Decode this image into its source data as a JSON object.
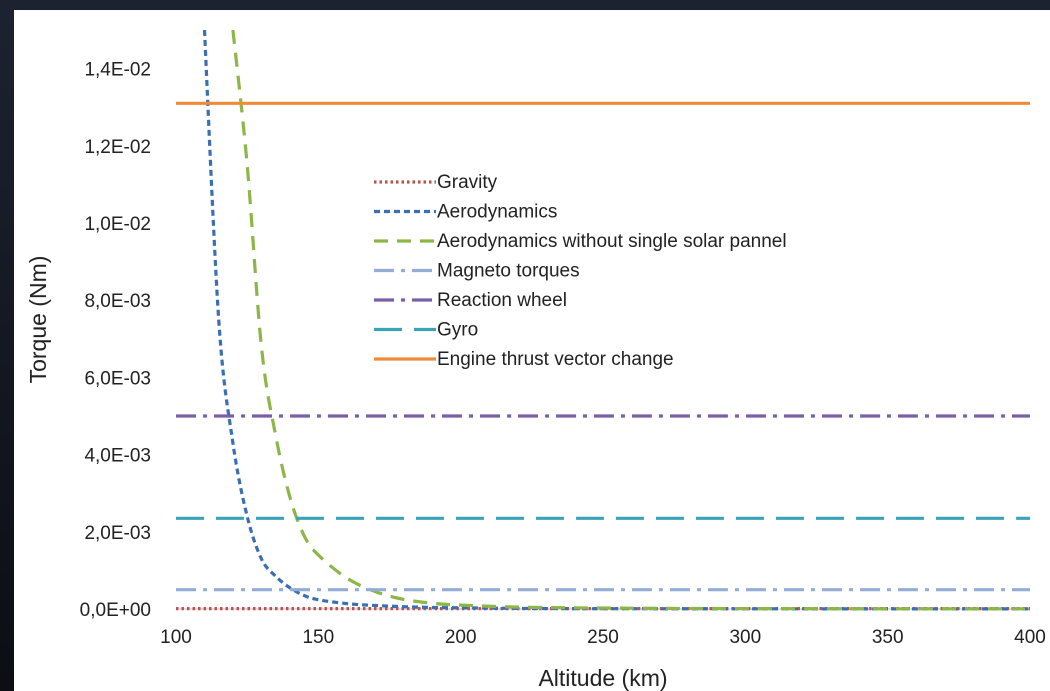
{
  "chart_data": {
    "type": "line",
    "title": "",
    "xlabel": "Altitude  (km)",
    "ylabel": "Torque (Nm)",
    "xlim": [
      100,
      400
    ],
    "ylim": [
      0,
      0.015
    ],
    "xticks": [
      100,
      150,
      200,
      250,
      300,
      350,
      400
    ],
    "xtick_labels": [
      "100",
      "150",
      "200",
      "250",
      "300",
      "350",
      "400"
    ],
    "yticks": [
      0,
      0.002,
      0.004,
      0.006,
      0.008,
      0.01,
      0.012,
      0.014
    ],
    "ytick_labels": [
      "0,0E+00",
      "2,0E-03",
      "4,0E-03",
      "6,0E-03",
      "8,0E-03",
      "1,0E-02",
      "1,2E-02",
      "1,4E-02"
    ],
    "grid": false,
    "legend_position": "center",
    "x": [
      100,
      110,
      115,
      120,
      125,
      130,
      135,
      140,
      145,
      150,
      160,
      170,
      180,
      190,
      200,
      220,
      240,
      260,
      300,
      350,
      400
    ],
    "series": [
      {
        "name": "Gravity",
        "color": "#c0504d",
        "dash": "dotted",
        "values": [
          1e-05,
          1e-05,
          1e-05,
          1e-05,
          1e-05,
          1e-05,
          1e-05,
          1e-05,
          1e-05,
          1e-05,
          1e-05,
          1e-05,
          1e-05,
          1e-05,
          1e-05,
          1e-05,
          1e-05,
          1e-05,
          1e-05,
          1e-05,
          1e-05
        ]
      },
      {
        "name": "Aerodynamics",
        "color": "#3a6fb3",
        "dash": "short-dash",
        "values": [
          null,
          0.015,
          0.0075,
          0.0043,
          0.0024,
          0.0013,
          0.00085,
          0.00055,
          0.00035,
          0.00024,
          0.00014,
          9e-05,
          6e-05,
          4e-05,
          3e-05,
          1.5e-05,
          1e-05,
          8e-06,
          5e-06,
          3e-06,
          2e-06
        ]
      },
      {
        "name": "Aerodynamics without single solar pannel",
        "color": "#8db649",
        "dash": "dash",
        "values": [
          null,
          null,
          null,
          0.015,
          0.0115,
          0.0068,
          0.0045,
          0.0029,
          0.0019,
          0.0014,
          0.0008,
          0.00045,
          0.00025,
          0.00015,
          0.0001,
          5e-05,
          3e-05,
          2e-05,
          1e-05,
          6e-06,
          4e-06
        ]
      },
      {
        "name": "Magneto torques",
        "color": "#94add6",
        "dash": "dash-dot",
        "values": [
          0.0005,
          0.0005,
          0.0005,
          0.0005,
          0.0005,
          0.0005,
          0.0005,
          0.0005,
          0.0005,
          0.0005,
          0.0005,
          0.0005,
          0.0005,
          0.0005,
          0.0005,
          0.0005,
          0.0005,
          0.0005,
          0.0005,
          0.0005,
          0.0005
        ]
      },
      {
        "name": "Reaction wheel",
        "color": "#7a5ea8",
        "dash": "dash-dot",
        "values": [
          0.005,
          0.005,
          0.005,
          0.005,
          0.005,
          0.005,
          0.005,
          0.005,
          0.005,
          0.005,
          0.005,
          0.005,
          0.005,
          0.005,
          0.005,
          0.005,
          0.005,
          0.005,
          0.005,
          0.005,
          0.005
        ]
      },
      {
        "name": "Gyro",
        "color": "#3ba3b6",
        "dash": "long-dash",
        "values": [
          0.00235,
          0.00235,
          0.00235,
          0.00235,
          0.00235,
          0.00235,
          0.00235,
          0.00235,
          0.00235,
          0.00235,
          0.00235,
          0.00235,
          0.00235,
          0.00235,
          0.00235,
          0.00235,
          0.00235,
          0.00235,
          0.00235,
          0.00235,
          0.00235
        ]
      },
      {
        "name": "Engine thrust vector change",
        "color": "#ee8b3a",
        "dash": "solid",
        "values": [
          0.0131,
          0.0131,
          0.0131,
          0.0131,
          0.0131,
          0.0131,
          0.0131,
          0.0131,
          0.0131,
          0.0131,
          0.0131,
          0.0131,
          0.0131,
          0.0131,
          0.0131,
          0.0131,
          0.0131,
          0.0131,
          0.0131,
          0.0131,
          0.0131
        ]
      }
    ]
  }
}
